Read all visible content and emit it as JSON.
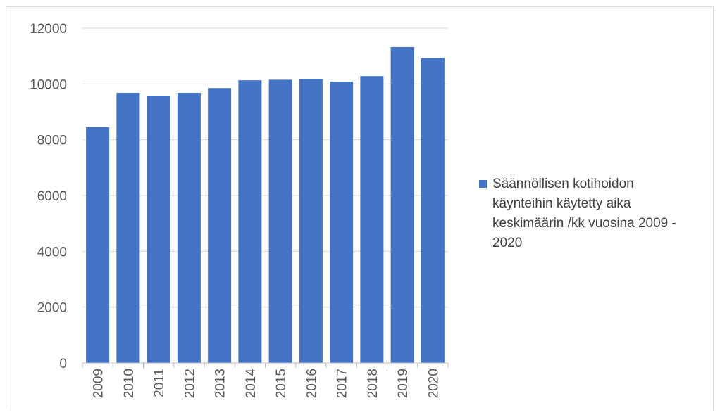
{
  "chart_data": {
    "type": "bar",
    "title": "",
    "xlabel": "",
    "ylabel": "",
    "categories": [
      "2009",
      "2010",
      "2011",
      "2012",
      "2013",
      "2014",
      "2015",
      "2016",
      "2017",
      "2018",
      "2019",
      "2020"
    ],
    "series": [
      {
        "name": "Säännöllisen kotihoidon käynteihin käytetty aika keskimäärin /kk vuosina 2009 - 2020",
        "values": [
          8450,
          9680,
          9580,
          9680,
          9850,
          10130,
          10150,
          10180,
          10080,
          10280,
          11320,
          10930
        ],
        "color": "#4472c4"
      }
    ],
    "ylim": [
      0,
      12000
    ],
    "yticks": [
      "0",
      "2000",
      "4000",
      "6000",
      "8000",
      "10000",
      "12000"
    ],
    "grid": true,
    "legend_position": "right"
  }
}
